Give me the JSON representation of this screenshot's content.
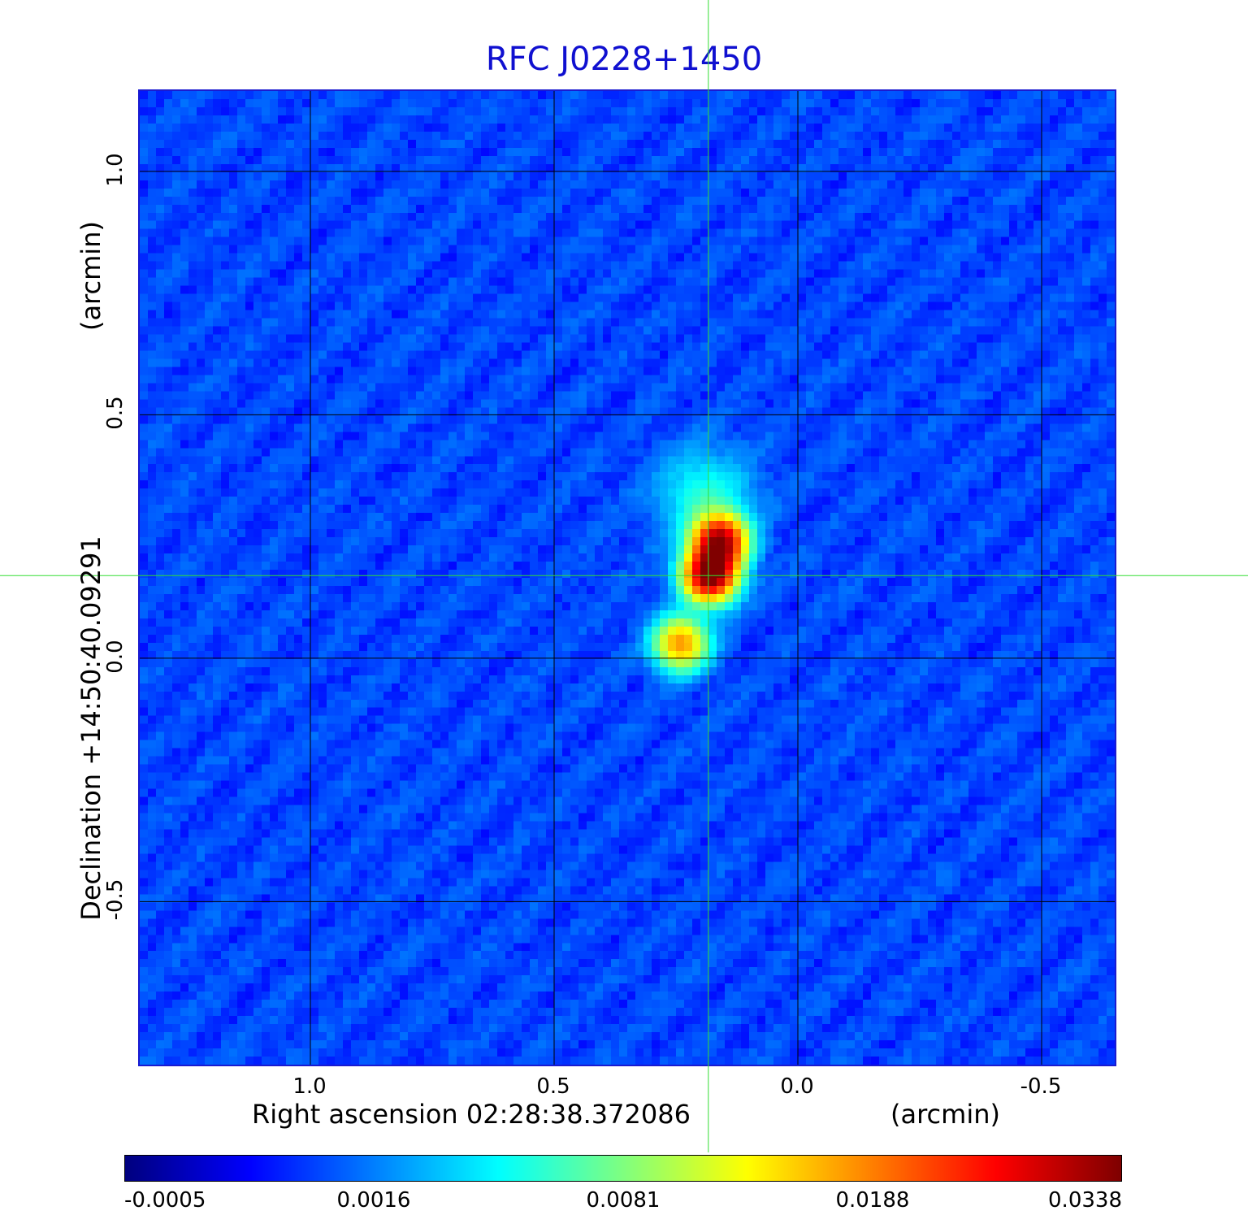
{
  "chart_data": {
    "type": "heatmap",
    "title": "RFC J0228+1450",
    "xlabel": "Right ascension  02:28:38.372086",
    "xunit": "(arcmin)",
    "ylabel": "Declination  +14:50:40.09291",
    "yunit": "(arcmin)",
    "xlim": [
      1.35,
      -0.65
    ],
    "ylim": [
      -0.835,
      1.165
    ],
    "x_ticks": [
      "1.0",
      "0.5",
      "0.0",
      "-0.5"
    ],
    "y_ticks": [
      "1.0",
      "0.5",
      "0.0",
      "-0.5"
    ],
    "grid": true,
    "crosshair": {
      "x": 0.182,
      "y": 0.168,
      "color": "#33dd33"
    },
    "colormap": "jet",
    "colorbar_ticks": [
      "-0.0005",
      "0.0016",
      "0.0081",
      "0.0188",
      "0.0338"
    ],
    "value_range": [
      -0.0005,
      0.0338
    ],
    "sources": [
      {
        "x": 0.18,
        "y": 0.17,
        "peak": 0.0338
      },
      {
        "x": 0.16,
        "y": 0.24,
        "peak": 0.03
      },
      {
        "x": 0.24,
        "y": 0.03,
        "peak": 0.017
      },
      {
        "x": 0.19,
        "y": 0.33,
        "peak": 0.004
      }
    ]
  }
}
